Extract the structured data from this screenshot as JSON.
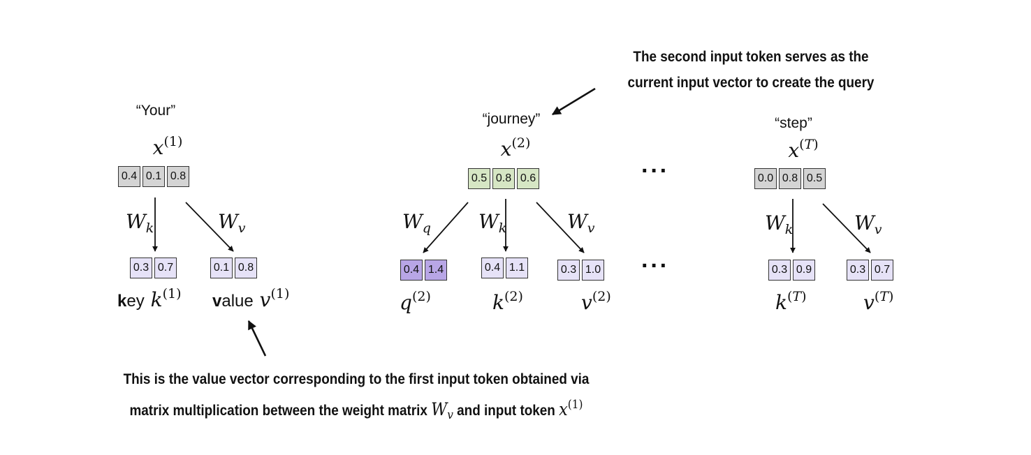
{
  "tokens": {
    "your": {
      "word": "“Your”",
      "x_label": {
        "sym": "x",
        "sup": "(1)"
      },
      "x_values": [
        "0.4",
        "0.1",
        "0.8"
      ],
      "wk": {
        "sym": "W",
        "sub": "k"
      },
      "wv": {
        "sym": "W",
        "sub": "v"
      },
      "k_values": [
        "0.3",
        "0.7"
      ],
      "v_values": [
        "0.1",
        "0.8"
      ],
      "k_label": {
        "bold": "k",
        "rest": "ey",
        "sym": "k",
        "sup": "(1)"
      },
      "v_label": {
        "bold": "v",
        "rest": "alue",
        "sym": "v",
        "sup": "(1)"
      }
    },
    "journey": {
      "word": "“journey”",
      "x_label": {
        "sym": "x",
        "sup": "(2)"
      },
      "x_values": [
        "0.5",
        "0.8",
        "0.6"
      ],
      "wq": {
        "sym": "W",
        "sub": "q"
      },
      "wk": {
        "sym": "W",
        "sub": "k"
      },
      "wv": {
        "sym": "W",
        "sub": "v"
      },
      "q_values": [
        "0.4",
        "1.4"
      ],
      "k_values": [
        "0.4",
        "1.1"
      ],
      "v_values": [
        "0.3",
        "1.0"
      ],
      "q_label": {
        "sym": "q",
        "sup": "(2)"
      },
      "k_label": {
        "sym": "k",
        "sup": "(2)"
      },
      "v_label": {
        "sym": "v",
        "sup": "(2)"
      }
    },
    "step": {
      "word": "“step”",
      "x_label": {
        "sym": "x",
        "sup_open": "(",
        "sup_var": "T",
        "sup_close": ")"
      },
      "x_values": [
        "0.0",
        "0.8",
        "0.5"
      ],
      "wk": {
        "sym": "W",
        "sub": "k"
      },
      "wv": {
        "sym": "W",
        "sub": "v"
      },
      "k_values": [
        "0.3",
        "0.9"
      ],
      "v_values": [
        "0.3",
        "0.7"
      ],
      "k_label": {
        "sym": "k",
        "sup_open": "(",
        "sup_var": "T",
        "sup_close": ")"
      },
      "v_label": {
        "sym": "v",
        "sup_open": "(",
        "sup_var": "T",
        "sup_close": ")"
      }
    }
  },
  "ellipsis": "···",
  "annotations": {
    "top": {
      "line1": "The second input token serves as the",
      "line2": "current input vector to create the query"
    },
    "bottom": {
      "line1": "This is the value vector corresponding to the first input token obtained via",
      "line2_pre": "matrix multiplication between the weight matrix ",
      "line2_w": "W",
      "line2_w_sub": "v",
      "line2_mid": " and input token ",
      "line2_x": "x",
      "line2_x_sup": "(1)"
    }
  }
}
